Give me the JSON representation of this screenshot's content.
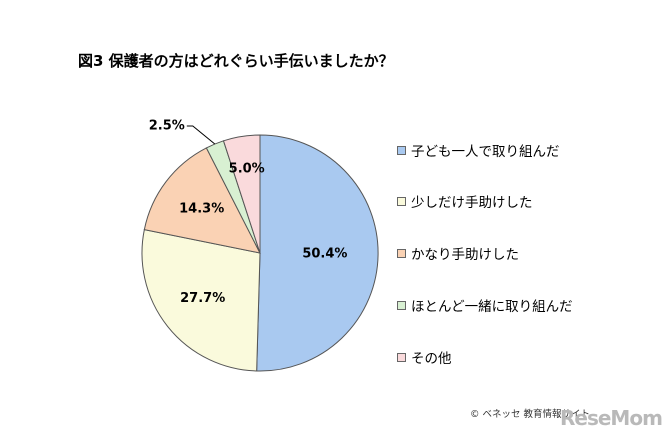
{
  "chart_data": {
    "type": "pie",
    "title": "図3 保護者の方はどれぐらい手伝いましたか？",
    "categories": [
      "子ども一人で取り組んだ",
      "少しだけ手助けした",
      "かなり手助けした",
      "ほとんど一緒に取り組んだ",
      "その他"
    ],
    "values": [
      50.4,
      27.7,
      14.3,
      2.5,
      5.0
    ],
    "labels": [
      "50.4%",
      "27.7%",
      "14.3%",
      "2.5%",
      "5.0%"
    ],
    "colors": [
      "#a9c9f0",
      "#fafadc",
      "#fad2b4",
      "#d8f0d2",
      "#fadadc"
    ],
    "start": "12 o'clock",
    "direction": "clockwise",
    "legend": "right"
  },
  "footer": {
    "copyright": "© ベネッセ 教育情報サイト",
    "brand": "ReseMom"
  }
}
